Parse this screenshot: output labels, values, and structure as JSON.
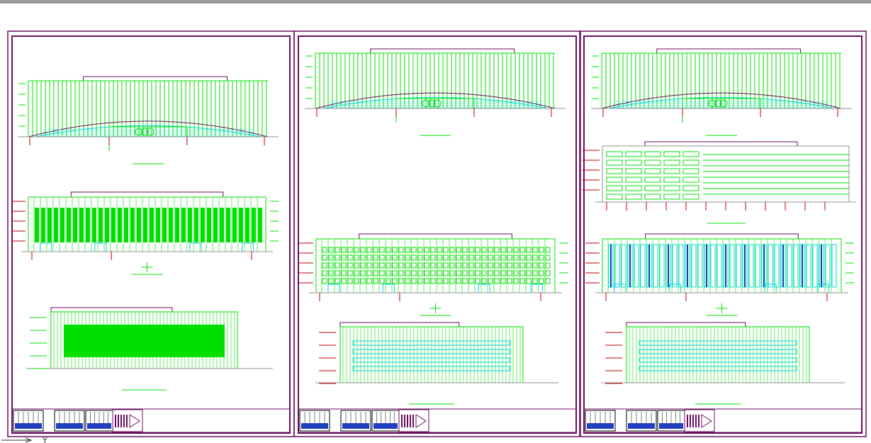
{
  "ucs_label": "Y"
}
